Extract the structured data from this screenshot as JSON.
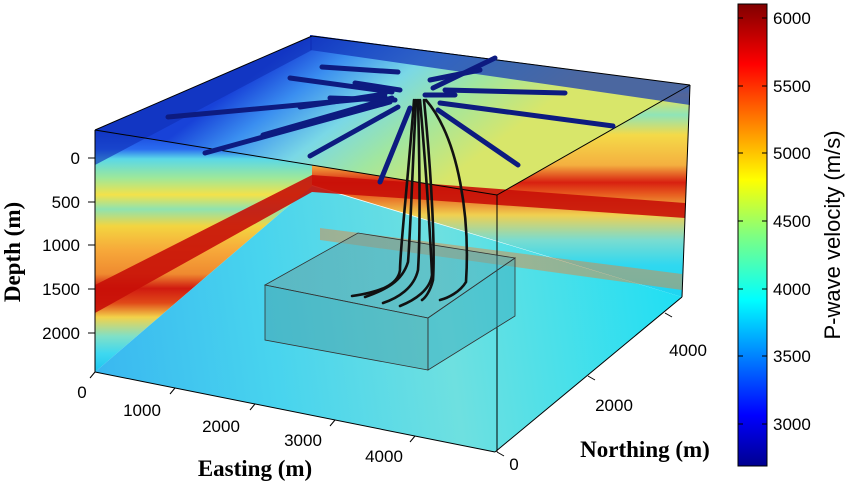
{
  "chart_data": {
    "type": "3d-volume-slices",
    "axes": {
      "depth": {
        "label": "Depth (m)",
        "ticks": [
          "0",
          "500",
          "1000",
          "1500",
          "2000"
        ]
      },
      "easting": {
        "label": "Easting (m)",
        "ticks": [
          "0",
          "1000",
          "2000",
          "3000",
          "4000"
        ]
      },
      "northing": {
        "label": "Northing (m)",
        "ticks": [
          "0",
          "2000",
          "4000"
        ]
      }
    },
    "colorbar": {
      "label": "P-wave velocity (m/s)",
      "range": [
        2700,
        6100
      ],
      "ticks": [
        "3000",
        "3500",
        "4000",
        "4500",
        "5000",
        "5500",
        "6000"
      ],
      "colormap": "jet"
    },
    "velocity_layers": [
      {
        "depth_range": [
          0,
          300
        ],
        "velocity": 3200
      },
      {
        "depth_range": [
          300,
          550
        ],
        "velocity": 4400
      },
      {
        "depth_range": [
          550,
          900
        ],
        "velocity": 4900
      },
      {
        "depth_range": [
          900,
          1250
        ],
        "velocity": 5200
      },
      {
        "depth_range": [
          1250,
          1450
        ],
        "velocity": 6000
      },
      {
        "depth_range": [
          1450,
          1700
        ],
        "velocity": 4500
      },
      {
        "depth_range": [
          1700,
          2300
        ],
        "velocity": 4000
      }
    ],
    "surface_receiver_lines": 18,
    "boreholes": 6,
    "target_box": {
      "easting": [
        1500,
        3700
      ],
      "northing": [
        1000,
        3000
      ],
      "depth": [
        1300,
        2300
      ]
    }
  }
}
